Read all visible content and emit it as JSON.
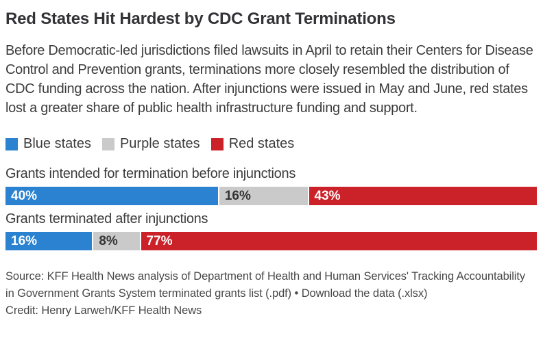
{
  "colors": {
    "blue": "#2b82d0",
    "purple_gray": "#cacaca",
    "red": "#cb2128",
    "title_text": "#323237",
    "body_text": "#3c3c3c",
    "footer_text": "#474747"
  },
  "header": {
    "title": "Red States Hit Hardest by CDC Grant Terminations",
    "description": "Before Democratic-led jurisdictions filed lawsuits in April to retain their Centers for Disease Control and Prevention grants, terminations more closely resembled the distribution of CDC funding across the nation. After injunctions were issued in May and June, red states lost a greater share of public health infrastructure funding and support."
  },
  "legend": [
    {
      "label": "Blue states",
      "color": "#2b82d0"
    },
    {
      "label": "Purple states",
      "color": "#cacaca"
    },
    {
      "label": "Red states",
      "color": "#cb2128"
    }
  ],
  "chart_data": {
    "type": "bar",
    "orientation": "horizontal-stacked",
    "unit": "percent",
    "title": "Red States Hit Hardest by CDC Grant Terminations",
    "categories": [
      "Grants intended for termination before injunctions",
      "Grants terminated after injunctions"
    ],
    "series": [
      {
        "name": "Blue states",
        "color": "#2b82d0",
        "values": [
          40,
          16
        ]
      },
      {
        "name": "Purple states",
        "color": "#cacaca",
        "values": [
          16,
          8
        ]
      },
      {
        "name": "Red states",
        "color": "#cb2128",
        "values": [
          43,
          77
        ]
      }
    ],
    "bar_labels": [
      [
        "40%",
        "16%",
        "43%"
      ],
      [
        "16%",
        "8%",
        "77%"
      ]
    ],
    "xlim": [
      0,
      100
    ],
    "grid": false,
    "legend_position": "top"
  },
  "footer": {
    "source_prefix": "Source: KFF Health News analysis of Department of Health and Human Services' Tracking Accountability in Government Grants System terminated grants list (.pdf) • ",
    "download_label": "Download the data (.xlsx)",
    "credit": "Credit: Henry Larweh/KFF Health News"
  }
}
